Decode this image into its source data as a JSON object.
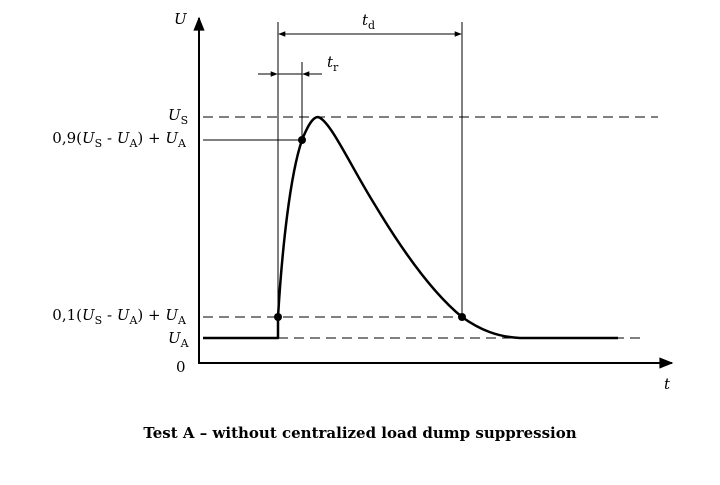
{
  "axes": {
    "y_symbol": "U",
    "x_symbol": "t",
    "origin_label": "0"
  },
  "levels": {
    "us": {
      "main": "U",
      "sub": "S"
    },
    "level_90": {
      "prefix": "0,9(",
      "u1": "U",
      "s1": "S",
      "minus": " - ",
      "u2": "U",
      "s2": "A",
      "mid": ") + ",
      "u3": "U",
      "s3": "A"
    },
    "level_10": {
      "prefix": "0,1(",
      "u1": "U",
      "s1": "S",
      "minus": " - ",
      "u2": "U",
      "s2": "A",
      "mid": ") + ",
      "u3": "U",
      "s3": "A"
    },
    "ua": {
      "main": "U",
      "sub": "A"
    }
  },
  "times": {
    "td": {
      "main": "t",
      "sub": "d"
    },
    "tr": {
      "main": "t",
      "sub": "r"
    }
  },
  "caption": "Test A – without centralized load dump suppression"
}
